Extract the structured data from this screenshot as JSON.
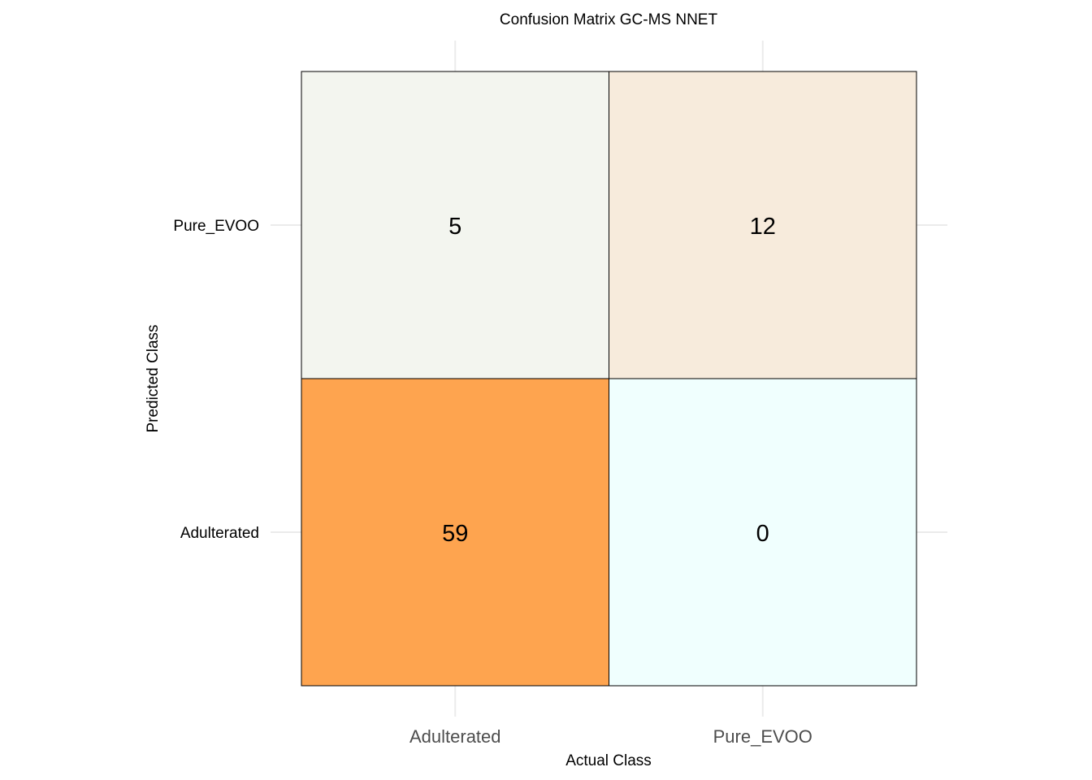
{
  "chart_data": {
    "type": "heatmap",
    "title": "Confusion Matrix GC-MS NNET",
    "xlabel": "Actual Class",
    "ylabel": "Predicted Class",
    "x_categories": [
      "Adulterated",
      "Pure_EVOO"
    ],
    "y_categories": [
      "Adulterated",
      "Pure_EVOO"
    ],
    "cells": [
      {
        "actual": "Adulterated",
        "predicted": "Pure_EVOO",
        "value": 5,
        "color": "#f3f5ef"
      },
      {
        "actual": "Pure_EVOO",
        "predicted": "Pure_EVOO",
        "value": 12,
        "color": "#f7ebdc"
      },
      {
        "actual": "Adulterated",
        "predicted": "Adulterated",
        "value": 59,
        "color": "#fea44f"
      },
      {
        "actual": "Pure_EVOO",
        "predicted": "Adulterated",
        "value": 0,
        "color": "#f0fffe"
      }
    ],
    "color_scale": {
      "low": "#f0ffff",
      "high": "#fea44f"
    },
    "grid": true,
    "legend": "none"
  }
}
